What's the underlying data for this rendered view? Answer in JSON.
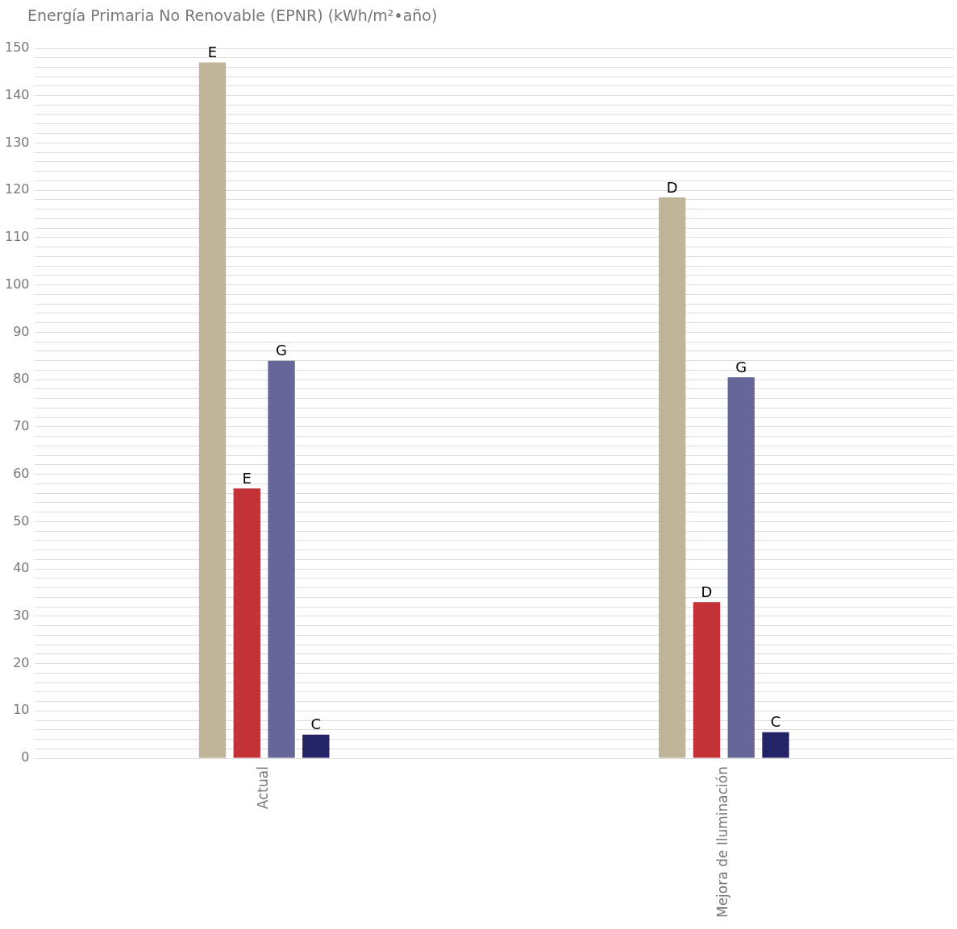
{
  "chart_data": {
    "type": "bar",
    "title": "Energía Primaria No Renovable (EPNR) (kWh/m²•año)",
    "categories": [
      "Actual",
      "Mejora de Iluminación"
    ],
    "series": [
      {
        "color": "#bfb497",
        "values": [
          147,
          118.5
        ],
        "value_labels": [
          "E",
          "D"
        ]
      },
      {
        "color": "#c33237",
        "values": [
          57,
          33
        ],
        "value_labels": [
          "E",
          "D"
        ]
      },
      {
        "color": "#666699",
        "values": [
          84,
          80.5
        ],
        "value_labels": [
          "G",
          "G"
        ]
      },
      {
        "color": "#232368",
        "values": [
          5,
          5.5
        ],
        "value_labels": [
          "C",
          "C"
        ]
      }
    ],
    "ylim": [
      0,
      150
    ],
    "yticks": [
      0,
      {
        "value": 2,
        "label": null
      },
      {
        "value": 4,
        "label": null
      },
      {
        "value": 6,
        "label": null
      },
      {
        "value": 8,
        "label": null
      },
      10,
      {
        "value": 12,
        "label": null
      },
      {
        "value": 14,
        "label": null
      },
      {
        "value": 16,
        "label": null
      },
      {
        "value": 18,
        "label": null
      },
      20,
      {
        "value": 22,
        "label": null
      },
      {
        "value": 24,
        "label": null
      },
      {
        "value": 26,
        "label": null
      },
      {
        "value": 28,
        "label": null
      },
      30,
      {
        "value": 32,
        "label": null
      },
      {
        "value": 34,
        "label": null
      },
      {
        "value": 36,
        "label": null
      },
      {
        "value": 38,
        "label": null
      },
      40,
      {
        "value": 42,
        "label": null
      },
      {
        "value": 44,
        "label": null
      },
      {
        "value": 46,
        "label": null
      },
      {
        "value": 48,
        "label": null
      },
      50,
      {
        "value": 52,
        "label": null
      },
      {
        "value": 54,
        "label": null
      },
      {
        "value": 56,
        "label": null
      },
      {
        "value": 58,
        "label": null
      },
      60,
      {
        "value": 62,
        "label": null
      },
      {
        "value": 64,
        "label": null
      },
      {
        "value": 66,
        "label": null
      },
      {
        "value": 68,
        "label": null
      },
      70,
      {
        "value": 72,
        "label": null
      },
      {
        "value": 74,
        "label": null
      },
      {
        "value": 76,
        "label": null
      },
      {
        "value": 78,
        "label": null
      },
      80,
      {
        "value": 82,
        "label": null
      },
      {
        "value": 84,
        "label": null
      },
      {
        "value": 86,
        "label": null
      },
      {
        "value": 88,
        "label": null
      },
      90,
      {
        "value": 92,
        "label": null
      },
      {
        "value": 94,
        "label": null
      },
      {
        "value": 96,
        "label": null
      },
      {
        "value": 98,
        "label": null
      },
      100,
      {
        "value": 102,
        "label": null
      },
      {
        "value": 104,
        "label": null
      },
      {
        "value": 106,
        "label": null
      },
      {
        "value": 108,
        "label": null
      },
      110,
      {
        "value": 112,
        "label": null
      },
      {
        "value": 114,
        "label": null
      },
      {
        "value": 116,
        "label": null
      },
      {
        "value": 118,
        "label": null
      },
      120,
      {
        "value": 122,
        "label": null
      },
      {
        "value": 124,
        "label": null
      },
      {
        "value": 126,
        "label": null
      },
      {
        "value": 128,
        "label": null
      },
      130,
      {
        "value": 132,
        "label": null
      },
      {
        "value": 134,
        "label": null
      },
      {
        "value": 136,
        "label": null
      },
      {
        "value": 138,
        "label": null
      },
      140,
      {
        "value": 142,
        "label": null
      },
      {
        "value": 144,
        "label": null
      },
      {
        "value": 146,
        "label": null
      },
      {
        "value": 148,
        "label": null
      },
      150
    ],
    "grid": "y",
    "legend": false
  }
}
